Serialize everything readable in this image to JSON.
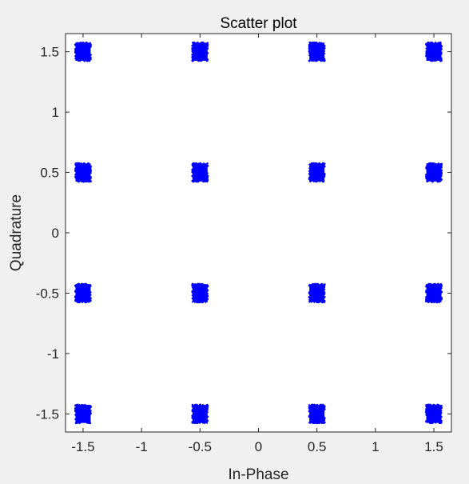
{
  "figure": {
    "background": "#f0f0f0",
    "axes_background": "#ffffff",
    "axis_color": "#262626"
  },
  "chart_data": {
    "type": "scatter",
    "title": "Scatter plot",
    "xlabel": "In-Phase",
    "ylabel": "Quadrature",
    "xlim": [
      -1.65,
      1.65
    ],
    "ylim": [
      -1.65,
      1.65
    ],
    "grid": false,
    "marker_color": "#0000ff",
    "cluster_spread": {
      "dx": 0.065,
      "dy": 0.075
    },
    "x_ticks": [
      {
        "value": -1.5,
        "label": "-1.5"
      },
      {
        "value": -1,
        "label": "-1"
      },
      {
        "value": -0.5,
        "label": "-0.5"
      },
      {
        "value": 0,
        "label": "0"
      },
      {
        "value": 0.5,
        "label": "0.5"
      },
      {
        "value": 1,
        "label": "1"
      },
      {
        "value": 1.5,
        "label": "1.5"
      }
    ],
    "y_ticks": [
      {
        "value": 1.5,
        "label": "1.5"
      },
      {
        "value": 1,
        "label": "1"
      },
      {
        "value": 0.5,
        "label": "0.5"
      },
      {
        "value": 0,
        "label": "0"
      },
      {
        "value": -0.5,
        "label": "-0.5"
      },
      {
        "value": -1,
        "label": "-1"
      },
      {
        "value": -1.5,
        "label": "-1.5"
      }
    ],
    "points": [
      {
        "x": -1.5,
        "y": 1.5
      },
      {
        "x": -0.5,
        "y": 1.5
      },
      {
        "x": 0.5,
        "y": 1.5
      },
      {
        "x": 1.5,
        "y": 1.5
      },
      {
        "x": -1.5,
        "y": 0.5
      },
      {
        "x": -0.5,
        "y": 0.5
      },
      {
        "x": 0.5,
        "y": 0.5
      },
      {
        "x": 1.5,
        "y": 0.5
      },
      {
        "x": -1.5,
        "y": -0.5
      },
      {
        "x": -0.5,
        "y": -0.5
      },
      {
        "x": 0.5,
        "y": -0.5
      },
      {
        "x": 1.5,
        "y": -0.5
      },
      {
        "x": -1.5,
        "y": -1.5
      },
      {
        "x": -0.5,
        "y": -1.5
      },
      {
        "x": 0.5,
        "y": -1.5
      },
      {
        "x": 1.5,
        "y": -1.5
      }
    ]
  }
}
